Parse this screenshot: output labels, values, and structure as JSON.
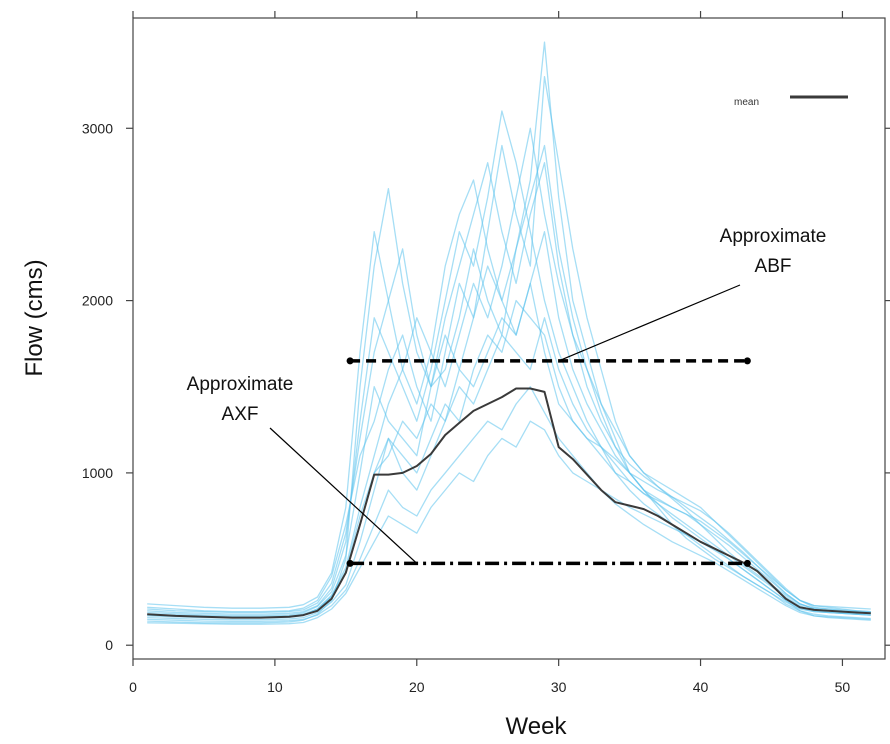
{
  "chart_data": {
    "type": "line",
    "xlabel": "Week",
    "ylabel": "Flow (cms)",
    "xlim": [
      0,
      53
    ],
    "ylim": [
      -80,
      3640
    ],
    "x_ticks": [
      0,
      10,
      20,
      30,
      40,
      50
    ],
    "y_ticks": [
      0,
      1000,
      2000,
      3000
    ],
    "legend": {
      "label": "mean",
      "position": "top-right"
    },
    "colors": {
      "ensemble": "#5cc3ec",
      "mean": "#3a3a3a",
      "annotation": "#000000"
    },
    "mean_series": {
      "name": "mean",
      "x": [
        1,
        3,
        5,
        7,
        9,
        11,
        12,
        13,
        14,
        15,
        16,
        17,
        18,
        19,
        20,
        21,
        22,
        23,
        24,
        25,
        26,
        27,
        28,
        29,
        30,
        31,
        32,
        33,
        34,
        35,
        36,
        37,
        38,
        39,
        40,
        41,
        42,
        43,
        44,
        45,
        46,
        47,
        48,
        49,
        50,
        51,
        52
      ],
      "y": [
        180,
        170,
        165,
        160,
        160,
        165,
        175,
        200,
        270,
        420,
        700,
        990,
        990,
        1000,
        1040,
        1110,
        1220,
        1290,
        1360,
        1400,
        1440,
        1490,
        1490,
        1470,
        1150,
        1080,
        990,
        900,
        830,
        810,
        790,
        750,
        700,
        650,
        600,
        560,
        520,
        480,
        430,
        350,
        270,
        220,
        205,
        200,
        195,
        190,
        185
      ]
    },
    "ensemble_series": [
      {
        "y": [
          140,
          135,
          130,
          130,
          130,
          135,
          145,
          180,
          260,
          500,
          1500,
          2200,
          2650,
          2100,
          1700,
          1500,
          1600,
          1900,
          2300,
          2000,
          1800,
          2300,
          2700,
          3500,
          2600,
          2000,
          1700,
          1400,
          1200,
          1000,
          900,
          800,
          700,
          620,
          560,
          500,
          450,
          400,
          350,
          300,
          240,
          200,
          180,
          170,
          165,
          160,
          155
        ]
      },
      {
        "y": [
          220,
          210,
          200,
          195,
          195,
          200,
          215,
          260,
          400,
          700,
          1100,
          1300,
          1600,
          1800,
          1500,
          1300,
          1700,
          2100,
          1900,
          2400,
          2900,
          2500,
          2200,
          3300,
          2800,
          2300,
          1900,
          1600,
          1300,
          1100,
          1000,
          950,
          900,
          850,
          800,
          720,
          640,
          560,
          480,
          400,
          320,
          260,
          230,
          220,
          210,
          200,
          195
        ]
      },
      {
        "y": [
          160,
          155,
          150,
          148,
          148,
          152,
          160,
          190,
          250,
          350,
          600,
          900,
          1200,
          1100,
          1000,
          1200,
          1400,
          1300,
          1600,
          1800,
          1700,
          2000,
          1900,
          1800,
          1500,
          1300,
          1200,
          1100,
          1000,
          950,
          880,
          820,
          760,
          700,
          640,
          580,
          520,
          460,
          400,
          340,
          280,
          230,
          200,
          190,
          185,
          180,
          175
        ]
      },
      {
        "y": [
          200,
          190,
          185,
          180,
          180,
          185,
          195,
          230,
          330,
          600,
          1300,
          1900,
          1700,
          1500,
          1300,
          1600,
          2000,
          2400,
          2200,
          2600,
          3100,
          2800,
          2400,
          2000,
          1700,
          1500,
          1300,
          1150,
          1000,
          900,
          820,
          760,
          700,
          640,
          580,
          520,
          460,
          400,
          350,
          300,
          250,
          210,
          195,
          190,
          185,
          180,
          175
        ]
      },
      {
        "y": [
          180,
          175,
          170,
          165,
          165,
          170,
          180,
          210,
          290,
          450,
          800,
          1100,
          1400,
          1600,
          1900,
          1700,
          1500,
          1800,
          2100,
          1900,
          2200,
          2600,
          3000,
          2500,
          2100,
          1800,
          1600,
          1400,
          1250,
          1100,
          1000,
          920,
          850,
          780,
          700,
          620,
          540,
          470,
          410,
          350,
          290,
          240,
          210,
          200,
          195,
          190,
          185
        ]
      },
      {
        "y": [
          150,
          145,
          140,
          138,
          138,
          142,
          150,
          175,
          230,
          320,
          500,
          700,
          900,
          800,
          750,
          900,
          1000,
          1100,
          1200,
          1300,
          1250,
          1400,
          1500,
          1350,
          1200,
          1100,
          1000,
          900,
          820,
          760,
          700,
          650,
          600,
          560,
          520,
          480,
          430,
          380,
          330,
          280,
          230,
          190,
          170,
          165,
          160,
          155,
          150
        ]
      },
      {
        "y": [
          240,
          230,
          220,
          215,
          215,
          220,
          235,
          280,
          420,
          800,
          1700,
          2400,
          2000,
          1600,
          1400,
          1700,
          2200,
          2500,
          2700,
          2300,
          2000,
          1800,
          2100,
          2400,
          1900,
          1600,
          1400,
          1250,
          1100,
          1000,
          900,
          850,
          800,
          760,
          720,
          660,
          600,
          530,
          460,
          390,
          320,
          260,
          230,
          225,
          220,
          215,
          210
        ]
      },
      {
        "y": [
          170,
          165,
          160,
          158,
          158,
          162,
          172,
          205,
          280,
          420,
          700,
          1000,
          1100,
          1300,
          1200,
          1400,
          1300,
          1600,
          1500,
          1700,
          1900,
          1800,
          2100,
          1700,
          1400,
          1300,
          1200,
          1150,
          1050,
          950,
          880,
          840,
          800,
          760,
          700,
          640,
          580,
          510,
          440,
          370,
          300,
          240,
          210,
          200,
          195,
          190,
          185
        ]
      },
      {
        "y": [
          190,
          182,
          176,
          172,
          172,
          176,
          188,
          225,
          310,
          520,
          1000,
          1500,
          1300,
          1200,
          1100,
          1500,
          1800,
          1600,
          1900,
          2200,
          2000,
          2300,
          2600,
          2900,
          2300,
          1900,
          1600,
          1350,
          1150,
          1000,
          900,
          820,
          740,
          680,
          620,
          560,
          500,
          440,
          380,
          320,
          260,
          215,
          195,
          190,
          185,
          180,
          175
        ]
      },
      {
        "y": [
          130,
          128,
          125,
          122,
          122,
          125,
          132,
          160,
          210,
          300,
          450,
          600,
          750,
          700,
          650,
          800,
          900,
          1000,
          950,
          1100,
          1200,
          1150,
          1300,
          1250,
          1100,
          1000,
          950,
          900,
          850,
          800,
          760,
          720,
          680,
          640,
          600,
          550,
          500,
          440,
          380,
          320,
          260,
          200,
          170,
          160,
          155,
          150,
          145
        ]
      },
      {
        "y": [
          210,
          200,
          195,
          190,
          190,
          195,
          205,
          245,
          360,
          650,
          1200,
          1700,
          2000,
          2300,
          1800,
          1500,
          1900,
          2200,
          2500,
          2800,
          2400,
          2100,
          2500,
          2800,
          2200,
          1800,
          1500,
          1300,
          1150,
          1050,
          980,
          920,
          860,
          800,
          740,
          680,
          610,
          540,
          460,
          380,
          300,
          240,
          215,
          210,
          205,
          200,
          195
        ]
      },
      {
        "y": [
          175,
          170,
          165,
          162,
          162,
          166,
          176,
          210,
          285,
          430,
          750,
          1000,
          1200,
          1000,
          900,
          1100,
          1300,
          1500,
          1400,
          1600,
          1800,
          1700,
          1600,
          1900,
          1600,
          1400,
          1250,
          1150,
          1080,
          1000,
          950,
          900,
          860,
          820,
          780,
          720,
          650,
          570,
          490,
          410,
          330,
          260,
          220,
          210,
          200,
          195,
          190
        ]
      }
    ],
    "annotations": [
      {
        "label_lines": [
          "Approximate",
          "ABF"
        ],
        "style": "dashed",
        "y": 1650,
        "x_start": 15.3,
        "x_end": 43.3,
        "pointer_to": [
          30,
          1650
        ]
      },
      {
        "label_lines": [
          "Approximate",
          "AXF"
        ],
        "style": "dash-dot",
        "y": 475,
        "x_start": 15.3,
        "x_end": 43.3,
        "pointer_to": [
          20,
          475
        ]
      }
    ]
  }
}
